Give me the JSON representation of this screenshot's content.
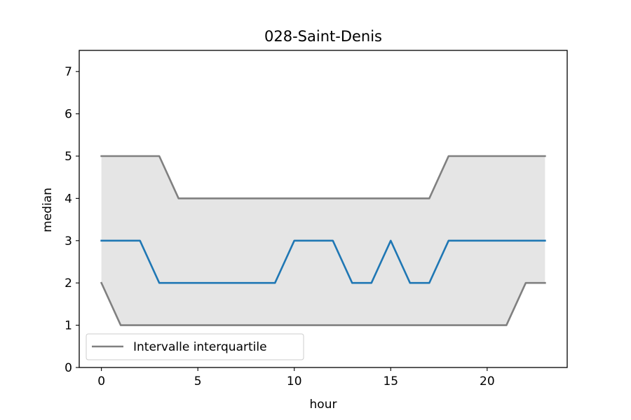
{
  "chart_data": {
    "type": "line",
    "title": "028-Saint-Denis",
    "xlabel": "hour",
    "ylabel": "median",
    "xlim": [
      -1.15,
      24.15
    ],
    "ylim": [
      0,
      7.5
    ],
    "xticks": [
      0,
      5,
      10,
      15,
      20
    ],
    "yticks": [
      0,
      1,
      2,
      3,
      4,
      5,
      6,
      7
    ],
    "grid": false,
    "legend_position": "lower-left",
    "x": [
      0,
      1,
      2,
      3,
      4,
      5,
      6,
      7,
      8,
      9,
      10,
      11,
      12,
      13,
      14,
      15,
      16,
      17,
      18,
      19,
      20,
      21,
      22,
      23
    ],
    "series": [
      {
        "key": "median",
        "color": "#1f77b4",
        "values": [
          3,
          3,
          3,
          2,
          2,
          2,
          2,
          2,
          2,
          2,
          3,
          3,
          3,
          2,
          2,
          3,
          2,
          2,
          3,
          3,
          3,
          3,
          3,
          3
        ]
      },
      {
        "key": "q3",
        "color": "#808080",
        "values": [
          5,
          5,
          5,
          5,
          4,
          4,
          4,
          4,
          4,
          4,
          4,
          4,
          4,
          4,
          4,
          4,
          4,
          4,
          5,
          5,
          5,
          5,
          5,
          5
        ]
      },
      {
        "key": "q1",
        "color": "#808080",
        "values": [
          2,
          1,
          1,
          1,
          1,
          1,
          1,
          1,
          1,
          1,
          1,
          1,
          1,
          1,
          1,
          1,
          1,
          1,
          1,
          1,
          1,
          1,
          2,
          2
        ]
      }
    ],
    "band": {
      "lower": "q1",
      "upper": "q3",
      "color": "#e5e5e5"
    },
    "legend": [
      {
        "label": "Intervalle interquartile",
        "color": "#808080"
      }
    ]
  }
}
